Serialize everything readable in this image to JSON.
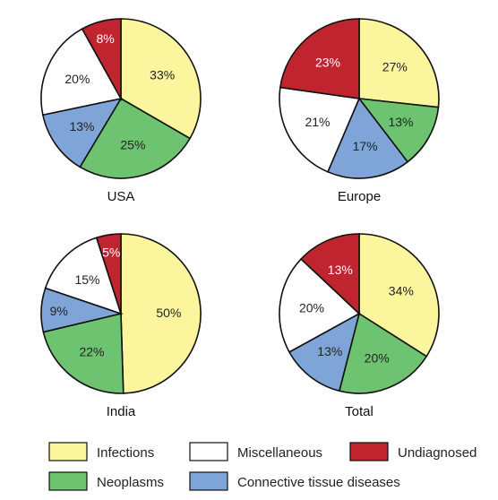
{
  "colors": {
    "Infections": "#fbf59d",
    "Neoplasms": "#6dc370",
    "Connective tissue diseases": "#7fa5d8",
    "Miscellaneous": "#ffffff",
    "Undiagnosed": "#c0242f"
  },
  "legend": {
    "items": [
      "Infections",
      "Miscellaneous",
      "Undiagnosed",
      "Neoplasms",
      "Connective tissue diseases"
    ],
    "placement": "bottom"
  },
  "chart_data": [
    {
      "type": "pie",
      "title": "USA",
      "labels": [
        "Infections",
        "Neoplasms",
        "Connective tissue diseases",
        "Miscellaneous",
        "Undiagnosed"
      ],
      "values": [
        33,
        25,
        13,
        20,
        8
      ],
      "value_labels": [
        "33%",
        "25%",
        "13%",
        "20%",
        "8%"
      ],
      "start": "12 o'clock",
      "direction": "clockwise"
    },
    {
      "type": "pie",
      "title": "Europe",
      "labels": [
        "Infections",
        "Neoplasms",
        "Connective tissue diseases",
        "Miscellaneous",
        "Undiagnosed"
      ],
      "values": [
        27,
        13,
        17,
        21,
        23
      ],
      "value_labels": [
        "27%",
        "13%",
        "17%",
        "21%",
        "23%"
      ],
      "start": "12 o'clock",
      "direction": "clockwise"
    },
    {
      "type": "pie",
      "title": "India",
      "labels": [
        "Infections",
        "Neoplasms",
        "Connective tissue diseases",
        "Miscellaneous",
        "Undiagnosed"
      ],
      "values": [
        50,
        22,
        9,
        15,
        5
      ],
      "value_labels": [
        "50%",
        "22%",
        "9%",
        "15%",
        "5%"
      ],
      "start": "12 o'clock",
      "direction": "clockwise"
    },
    {
      "type": "pie",
      "title": "Total",
      "labels": [
        "Infections",
        "Neoplasms",
        "Connective tissue diseases",
        "Miscellaneous",
        "Undiagnosed"
      ],
      "values": [
        34,
        20,
        13,
        20,
        13
      ],
      "value_labels": [
        "34%",
        "20%",
        "13%",
        "20%",
        "13%"
      ],
      "start": "12 o'clock",
      "direction": "clockwise"
    }
  ]
}
